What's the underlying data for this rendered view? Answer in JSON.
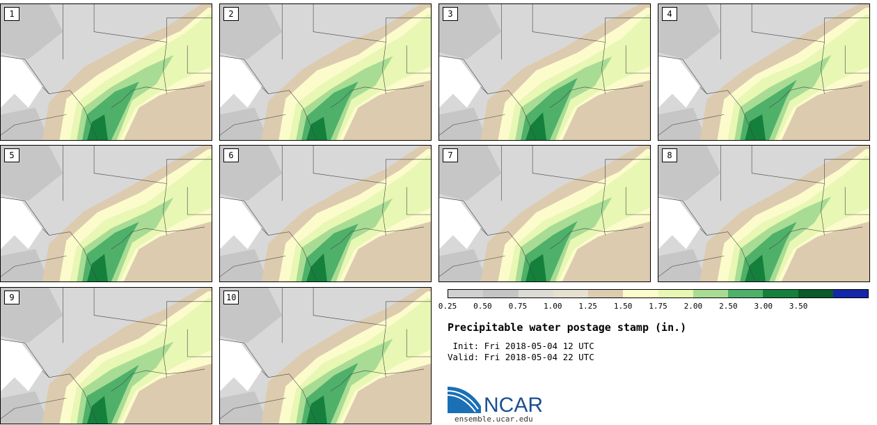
{
  "panels": [
    {
      "label": "1"
    },
    {
      "label": "2"
    },
    {
      "label": "3"
    },
    {
      "label": "4"
    },
    {
      "label": "5"
    },
    {
      "label": "6"
    },
    {
      "label": "7"
    },
    {
      "label": "8"
    },
    {
      "label": "9"
    },
    {
      "label": "10"
    }
  ],
  "legend": {
    "colors": [
      "#d0d0d0",
      "#c4c4c4",
      "#dcdcd4",
      "#e6e0d0",
      "#dccbae",
      "#fbfbcc",
      "#e8f7b4",
      "#a8dc94",
      "#4fb06a",
      "#14803c",
      "#0a5a2a",
      "#1428a8"
    ],
    "ticks": [
      "0.25",
      "0.50",
      "0.75",
      "1.00",
      "1.25",
      "1.50",
      "1.75",
      "2.00",
      "2.50",
      "3.00",
      "3.50"
    ]
  },
  "title": "Precipitable water postage stamp (in.)",
  "init": " Init: Fri 2018-05-04 12 UTC",
  "valid": "Valid: Fri 2018-05-04 22 UTC",
  "logo": {
    "text": "NCAR",
    "url": "ensemble.ucar.edu",
    "color": "#1a4f91"
  },
  "map_colors": {
    "gray_dark": "#c6c6c6",
    "gray_light": "#d8d8d8",
    "white": "#ffffff",
    "tan": "#dccbae",
    "pale_yellow": "#fbfbcc",
    "light_green": "#e8f7b4",
    "mid_green": "#a8dc94",
    "green": "#4fb06a",
    "dark_green": "#14803c",
    "ocean": "#dccbae"
  }
}
